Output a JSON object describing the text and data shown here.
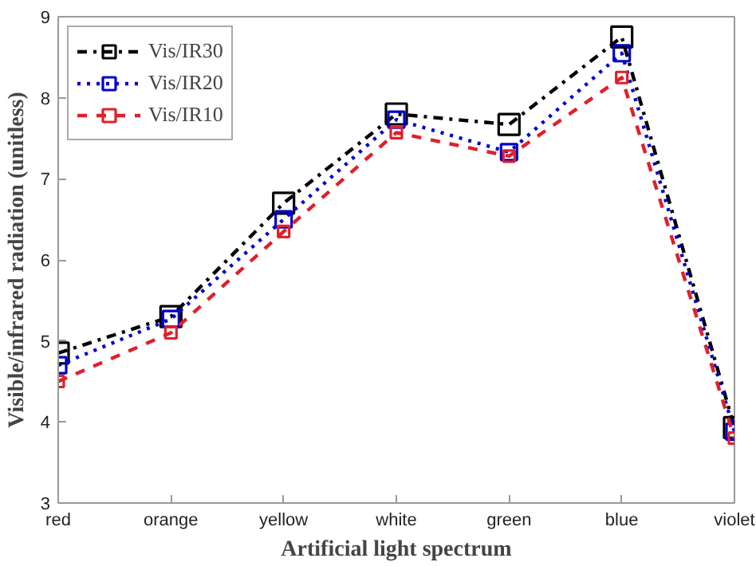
{
  "chart_data": {
    "type": "line",
    "xlabel": "Artificial light spectrum",
    "ylabel": "Visible/infrared radiation (unitless)",
    "categories": [
      "red",
      "orange",
      "yellow",
      "white",
      "green",
      "blue",
      "violet"
    ],
    "series": [
      {
        "name": "Vis/IR30",
        "color": "#000000",
        "line_style": "dashdot",
        "values": [
          4.85,
          5.3,
          6.7,
          7.8,
          7.67,
          8.75,
          3.93
        ]
      },
      {
        "name": "Vis/IR20",
        "color": "#0000cc",
        "line_style": "dotted",
        "values": [
          4.7,
          5.27,
          6.5,
          7.73,
          7.33,
          8.55,
          3.88
        ]
      },
      {
        "name": "Vis/IR10",
        "color": "#e0202a",
        "line_style": "dashed",
        "values": [
          4.5,
          5.1,
          6.35,
          7.57,
          7.28,
          8.25,
          3.8
        ]
      }
    ],
    "ylim": [
      3,
      9
    ],
    "yticks": [
      3,
      4,
      5,
      6,
      7,
      8,
      9
    ],
    "grid": false,
    "legend": "top left",
    "marker": "square"
  }
}
